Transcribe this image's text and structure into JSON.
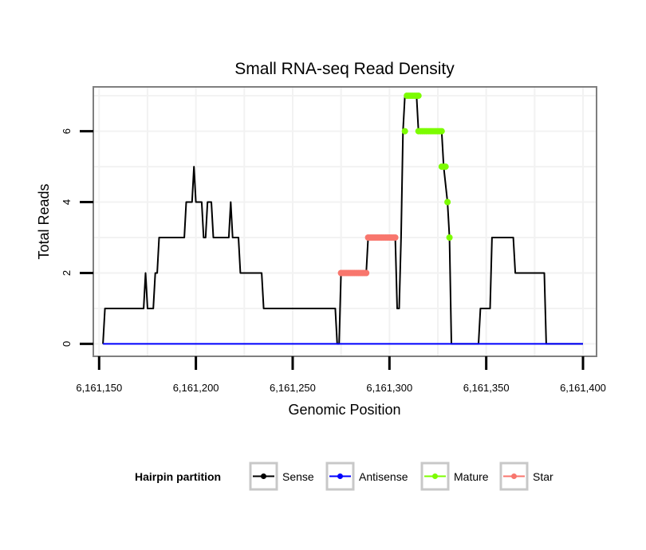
{
  "chart_data": {
    "type": "line",
    "title": "Small RNA-seq Read Density",
    "xlabel": "Genomic Position",
    "ylabel": "Total Reads",
    "xlim": [
      6161147,
      6161407
    ],
    "ylim": [
      -0.35,
      7.25
    ],
    "x_ticks": [
      6161150,
      6161200,
      6161250,
      6161300,
      6161350,
      6161400
    ],
    "x_tick_labels": [
      "6,161,150",
      "6,161,200",
      "6,161,250",
      "6,161,300",
      "6,161,350",
      "6,161,400"
    ],
    "y_ticks": [
      0,
      2,
      4,
      6
    ],
    "y_tick_labels": [
      "0",
      "2",
      "4",
      "6"
    ],
    "grid": true,
    "legend": {
      "title": "Hairpin partition",
      "position": "bottom",
      "entries": [
        "Sense",
        "Antisense",
        "Mature",
        "Star"
      ]
    },
    "series": [
      {
        "name": "Sense",
        "color": "#000000",
        "step_points": [
          [
            6161152,
            0
          ],
          [
            6161153,
            1
          ],
          [
            6161173,
            1
          ],
          [
            6161174,
            2
          ],
          [
            6161175,
            1
          ],
          [
            6161178,
            1
          ],
          [
            6161179,
            2
          ],
          [
            6161180,
            2
          ],
          [
            6161181,
            3
          ],
          [
            6161194,
            3
          ],
          [
            6161195,
            4
          ],
          [
            6161198,
            4
          ],
          [
            6161199,
            5
          ],
          [
            6161200,
            4
          ],
          [
            6161203,
            4
          ],
          [
            6161204,
            3
          ],
          [
            6161205,
            3
          ],
          [
            6161206,
            4
          ],
          [
            6161208,
            4
          ],
          [
            6161209,
            3
          ],
          [
            6161217,
            3
          ],
          [
            6161218,
            4
          ],
          [
            6161219,
            3
          ],
          [
            6161222,
            3
          ],
          [
            6161223,
            2
          ],
          [
            6161234,
            2
          ],
          [
            6161235,
            1
          ],
          [
            6161272,
            1
          ],
          [
            6161273,
            0
          ],
          [
            6161274,
            0
          ],
          [
            6161275,
            2
          ],
          [
            6161288,
            2
          ],
          [
            6161289,
            3
          ],
          [
            6161303,
            3
          ],
          [
            6161304,
            1
          ],
          [
            6161305,
            1
          ],
          [
            6161306,
            3
          ],
          [
            6161307,
            6
          ],
          [
            6161308,
            7
          ],
          [
            6161314,
            7
          ],
          [
            6161315,
            6
          ],
          [
            6161327,
            6
          ],
          [
            6161328,
            5
          ],
          [
            6161330,
            4
          ],
          [
            6161331,
            3
          ],
          [
            6161332,
            0
          ],
          [
            6161346,
            0
          ],
          [
            6161347,
            1
          ],
          [
            6161352,
            1
          ],
          [
            6161353,
            3
          ],
          [
            6161364,
            3
          ],
          [
            6161365,
            2
          ],
          [
            6161380,
            2
          ],
          [
            6161381,
            0
          ],
          [
            6161400,
            0
          ]
        ]
      },
      {
        "name": "Antisense",
        "color": "#0000ff",
        "step_points": [
          [
            6161152,
            0
          ],
          [
            6161400,
            0
          ]
        ]
      },
      {
        "name": "Mature",
        "color": "#7cfc00",
        "points": [
          [
            6161308,
            6
          ],
          [
            6161309,
            7
          ],
          [
            6161310,
            7
          ],
          [
            6161311,
            7
          ],
          [
            6161312,
            7
          ],
          [
            6161313,
            7
          ],
          [
            6161314,
            7
          ],
          [
            6161315,
            7
          ],
          [
            6161315,
            6
          ],
          [
            6161316,
            6
          ],
          [
            6161317,
            6
          ],
          [
            6161318,
            6
          ],
          [
            6161319,
            6
          ],
          [
            6161320,
            6
          ],
          [
            6161321,
            6
          ],
          [
            6161322,
            6
          ],
          [
            6161323,
            6
          ],
          [
            6161324,
            6
          ],
          [
            6161325,
            6
          ],
          [
            6161326,
            6
          ],
          [
            6161327,
            6
          ],
          [
            6161327,
            5
          ],
          [
            6161328,
            5
          ],
          [
            6161329,
            5
          ],
          [
            6161330,
            4
          ],
          [
            6161331,
            3
          ]
        ]
      },
      {
        "name": "Star",
        "color": "#f8766d",
        "points": [
          [
            6161275,
            2
          ],
          [
            6161276,
            2
          ],
          [
            6161277,
            2
          ],
          [
            6161278,
            2
          ],
          [
            6161279,
            2
          ],
          [
            6161280,
            2
          ],
          [
            6161281,
            2
          ],
          [
            6161282,
            2
          ],
          [
            6161283,
            2
          ],
          [
            6161284,
            2
          ],
          [
            6161285,
            2
          ],
          [
            6161286,
            2
          ],
          [
            6161287,
            2
          ],
          [
            6161288,
            2
          ],
          [
            6161289,
            3
          ],
          [
            6161290,
            3
          ],
          [
            6161291,
            3
          ],
          [
            6161292,
            3
          ],
          [
            6161293,
            3
          ],
          [
            6161294,
            3
          ],
          [
            6161295,
            3
          ],
          [
            6161296,
            3
          ],
          [
            6161297,
            3
          ],
          [
            6161298,
            3
          ],
          [
            6161299,
            3
          ],
          [
            6161300,
            3
          ],
          [
            6161301,
            3
          ],
          [
            6161302,
            3
          ],
          [
            6161303,
            3
          ]
        ]
      }
    ]
  }
}
